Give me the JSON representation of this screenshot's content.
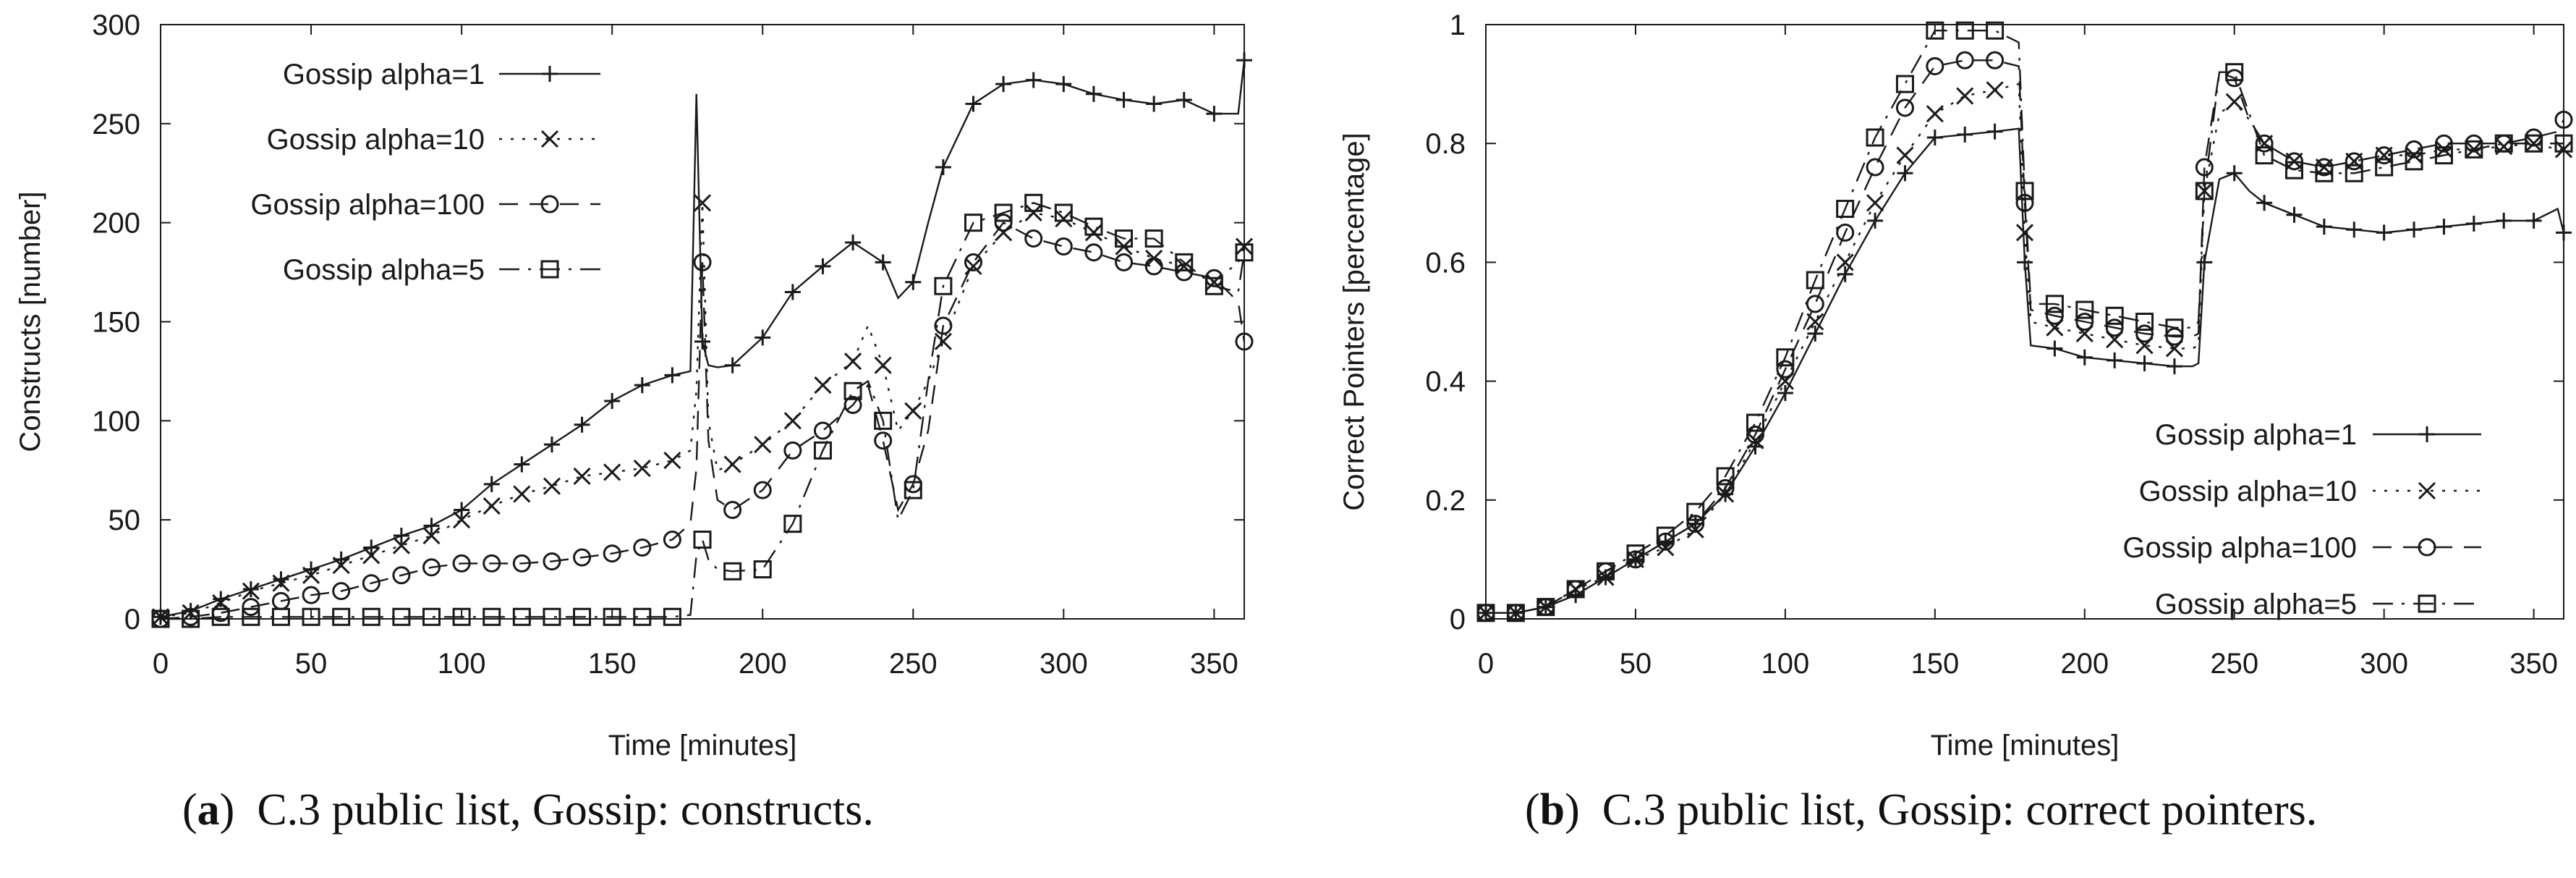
{
  "chart_data": [
    {
      "type": "line",
      "label": "a",
      "caption": "C.3 public list, Gossip: constructs.",
      "xlabel": "Time [minutes]",
      "ylabel": "Constructs [number]",
      "xlim": [
        0,
        360
      ],
      "ylim": [
        0,
        300
      ],
      "xticks": [
        0,
        50,
        100,
        150,
        200,
        250,
        300,
        350
      ],
      "yticks": [
        0,
        50,
        100,
        150,
        200,
        250,
        300
      ],
      "legend_position": "top-left",
      "series": [
        {
          "name": "Gossip alpha=1",
          "marker": "plus",
          "dash": "solid",
          "x": [
            0,
            10,
            20,
            30,
            40,
            50,
            60,
            70,
            80,
            90,
            100,
            110,
            120,
            130,
            140,
            150,
            160,
            170,
            176,
            178,
            180,
            182,
            185,
            190,
            200,
            210,
            220,
            230,
            240,
            245,
            250,
            255,
            260,
            270,
            280,
            290,
            300,
            310,
            320,
            330,
            340,
            350,
            358,
            360
          ],
          "y": [
            1,
            4,
            10,
            15,
            20,
            25,
            30,
            36,
            42,
            47,
            55,
            68,
            78,
            88,
            98,
            110,
            118,
            123,
            125,
            265,
            140,
            128,
            127,
            128,
            142,
            165,
            178,
            190,
            180,
            162,
            170,
            200,
            228,
            260,
            270,
            272,
            270,
            265,
            262,
            260,
            262,
            255,
            255,
            282
          ]
        },
        {
          "name": "Gossip alpha=10",
          "marker": "x",
          "dash": "dot",
          "x": [
            0,
            10,
            20,
            30,
            40,
            50,
            60,
            70,
            80,
            90,
            100,
            110,
            120,
            130,
            140,
            150,
            160,
            170,
            176,
            178,
            180,
            182,
            185,
            190,
            200,
            210,
            220,
            230,
            235,
            240,
            245,
            250,
            255,
            260,
            270,
            280,
            290,
            300,
            310,
            320,
            330,
            340,
            350,
            358,
            360
          ],
          "y": [
            1,
            3,
            8,
            14,
            18,
            22,
            27,
            32,
            37,
            42,
            50,
            57,
            63,
            67,
            72,
            74,
            76,
            80,
            85,
            115,
            210,
            100,
            75,
            78,
            88,
            100,
            118,
            130,
            148,
            128,
            95,
            105,
            120,
            140,
            178,
            195,
            205,
            202,
            195,
            188,
            182,
            178,
            170,
            180,
            188
          ]
        },
        {
          "name": "Gossip alpha=100",
          "marker": "circle",
          "dash": "dash",
          "x": [
            0,
            10,
            20,
            30,
            40,
            50,
            60,
            70,
            80,
            90,
            100,
            110,
            120,
            130,
            140,
            150,
            160,
            170,
            176,
            178,
            180,
            182,
            185,
            190,
            200,
            210,
            220,
            230,
            235,
            240,
            245,
            250,
            255,
            260,
            270,
            280,
            290,
            300,
            310,
            320,
            330,
            340,
            350,
            358,
            360
          ],
          "y": [
            0,
            1,
            3,
            6,
            9,
            12,
            14,
            18,
            22,
            26,
            28,
            28,
            28,
            29,
            31,
            33,
            36,
            40,
            48,
            76,
            180,
            90,
            60,
            55,
            65,
            85,
            95,
            108,
            118,
            90,
            55,
            68,
            95,
            148,
            180,
            200,
            192,
            188,
            185,
            180,
            178,
            175,
            172,
            160,
            140
          ]
        },
        {
          "name": "Gossip alpha=5",
          "marker": "square",
          "dash": "dashdot",
          "x": [
            0,
            10,
            20,
            30,
            40,
            50,
            60,
            70,
            80,
            90,
            100,
            110,
            120,
            130,
            140,
            150,
            160,
            170,
            176,
            178,
            180,
            182,
            185,
            190,
            200,
            210,
            220,
            230,
            235,
            240,
            245,
            250,
            255,
            260,
            270,
            280,
            290,
            300,
            310,
            320,
            330,
            340,
            350,
            358,
            360
          ],
          "y": [
            0,
            0,
            1,
            1,
            1,
            1,
            1,
            1,
            1,
            1,
            1,
            1,
            1,
            1,
            1,
            1,
            1,
            1,
            2,
            32,
            40,
            30,
            25,
            24,
            25,
            48,
            85,
            115,
            120,
            100,
            50,
            65,
            120,
            168,
            200,
            205,
            210,
            205,
            198,
            192,
            192,
            180,
            168,
            165,
            185
          ]
        }
      ]
    },
    {
      "type": "line",
      "label": "b",
      "caption": "C.3 public list, Gossip: correct pointers.",
      "xlabel": "Time [minutes]",
      "ylabel": "Correct Pointers [percentage]",
      "xlim": [
        0,
        360
      ],
      "ylim": [
        0,
        1
      ],
      "xticks": [
        0,
        50,
        100,
        150,
        200,
        250,
        300,
        350
      ],
      "yticks": [
        0,
        0.2,
        0.4,
        0.6,
        0.8,
        1
      ],
      "legend_position": "bottom-right",
      "series": [
        {
          "name": "Gossip alpha=1",
          "marker": "plus",
          "dash": "solid",
          "x": [
            0,
            10,
            20,
            30,
            40,
            50,
            60,
            70,
            80,
            90,
            100,
            110,
            120,
            130,
            140,
            150,
            160,
            170,
            178,
            180,
            182,
            190,
            200,
            210,
            220,
            230,
            236,
            238,
            240,
            245,
            250,
            255,
            260,
            270,
            280,
            290,
            300,
            310,
            320,
            330,
            340,
            350,
            358,
            360
          ],
          "y": [
            0.01,
            0.01,
            0.02,
            0.04,
            0.07,
            0.1,
            0.13,
            0.16,
            0.21,
            0.29,
            0.38,
            0.48,
            0.58,
            0.67,
            0.75,
            0.81,
            0.815,
            0.82,
            0.825,
            0.6,
            0.46,
            0.455,
            0.44,
            0.435,
            0.43,
            0.425,
            0.425,
            0.43,
            0.6,
            0.74,
            0.75,
            0.72,
            0.7,
            0.68,
            0.66,
            0.655,
            0.65,
            0.655,
            0.66,
            0.665,
            0.67,
            0.67,
            0.69,
            0.65
          ]
        },
        {
          "name": "Gossip alpha=10",
          "marker": "x",
          "dash": "dot",
          "x": [
            0,
            10,
            20,
            30,
            40,
            50,
            60,
            70,
            80,
            90,
            100,
            110,
            120,
            130,
            140,
            150,
            160,
            170,
            178,
            180,
            182,
            190,
            200,
            210,
            220,
            230,
            236,
            238,
            240,
            245,
            250,
            255,
            260,
            270,
            280,
            290,
            300,
            310,
            320,
            330,
            340,
            350,
            358,
            360
          ],
          "y": [
            0.01,
            0.01,
            0.02,
            0.05,
            0.07,
            0.1,
            0.12,
            0.15,
            0.21,
            0.3,
            0.4,
            0.5,
            0.6,
            0.7,
            0.78,
            0.85,
            0.88,
            0.89,
            0.9,
            0.65,
            0.5,
            0.49,
            0.48,
            0.47,
            0.46,
            0.455,
            0.455,
            0.46,
            0.72,
            0.85,
            0.87,
            0.84,
            0.8,
            0.77,
            0.76,
            0.77,
            0.78,
            0.78,
            0.79,
            0.79,
            0.795,
            0.8,
            0.79,
            0.79
          ]
        },
        {
          "name": "Gossip alpha=100",
          "marker": "circle",
          "dash": "dash",
          "x": [
            0,
            10,
            20,
            30,
            40,
            50,
            60,
            70,
            80,
            90,
            100,
            110,
            120,
            130,
            140,
            150,
            160,
            170,
            178,
            180,
            182,
            190,
            200,
            210,
            220,
            230,
            236,
            238,
            240,
            245,
            250,
            255,
            260,
            270,
            280,
            290,
            300,
            310,
            320,
            330,
            340,
            350,
            358,
            360
          ],
          "y": [
            0.01,
            0.01,
            0.02,
            0.05,
            0.08,
            0.1,
            0.13,
            0.16,
            0.22,
            0.31,
            0.42,
            0.53,
            0.65,
            0.76,
            0.86,
            0.93,
            0.94,
            0.94,
            0.93,
            0.7,
            0.52,
            0.51,
            0.5,
            0.49,
            0.48,
            0.475,
            0.475,
            0.48,
            0.76,
            0.92,
            0.91,
            0.84,
            0.8,
            0.77,
            0.76,
            0.77,
            0.78,
            0.79,
            0.8,
            0.8,
            0.8,
            0.81,
            0.82,
            0.84
          ]
        },
        {
          "name": "Gossip alpha=5",
          "marker": "square",
          "dash": "dashdot",
          "x": [
            0,
            10,
            20,
            30,
            40,
            50,
            60,
            70,
            80,
            90,
            100,
            110,
            120,
            130,
            140,
            150,
            160,
            170,
            178,
            180,
            182,
            190,
            200,
            210,
            220,
            230,
            236,
            238,
            240,
            245,
            250,
            255,
            260,
            270,
            280,
            290,
            300,
            310,
            320,
            330,
            340,
            350,
            358,
            360
          ],
          "y": [
            0.01,
            0.01,
            0.02,
            0.05,
            0.08,
            0.11,
            0.14,
            0.18,
            0.24,
            0.33,
            0.44,
            0.57,
            0.69,
            0.81,
            0.9,
            0.99,
            0.99,
            0.99,
            0.97,
            0.72,
            0.53,
            0.53,
            0.52,
            0.51,
            0.5,
            0.49,
            0.49,
            0.5,
            0.72,
            0.92,
            0.92,
            0.85,
            0.78,
            0.755,
            0.75,
            0.75,
            0.76,
            0.77,
            0.78,
            0.79,
            0.8,
            0.8,
            0.8,
            0.8
          ]
        }
      ]
    }
  ]
}
